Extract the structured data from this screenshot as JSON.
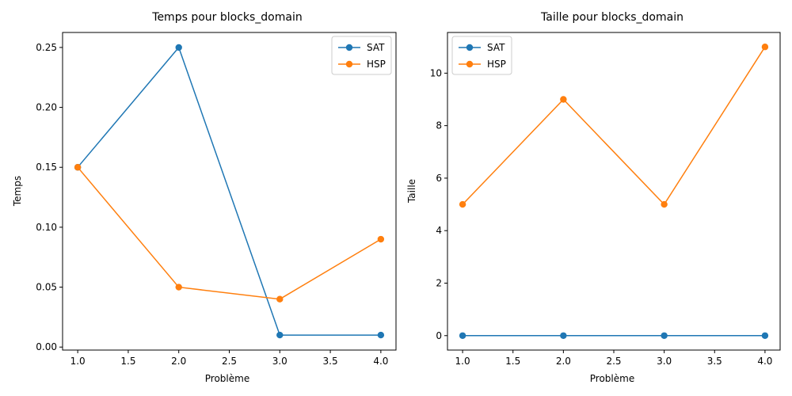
{
  "colors": {
    "SAT": "#1f77b4",
    "HSP": "#ff7f0e"
  },
  "chart_data": [
    {
      "type": "line",
      "title": "Temps pour blocks_domain",
      "xlabel": "Problème",
      "ylabel": "Temps",
      "x": [
        1.0,
        2.0,
        3.0,
        4.0
      ],
      "xlim": [
        0.85,
        4.15
      ],
      "ylim": [
        -0.0025,
        0.2625
      ],
      "xticks": [
        1.0,
        1.5,
        2.0,
        2.5,
        3.0,
        3.5,
        4.0
      ],
      "xtick_labels": [
        "1.0",
        "1.5",
        "2.0",
        "2.5",
        "3.0",
        "3.5",
        "4.0"
      ],
      "yticks": [
        0.0,
        0.05,
        0.1,
        0.15,
        0.2,
        0.25
      ],
      "ytick_labels": [
        "0.00",
        "0.05",
        "0.10",
        "0.15",
        "0.20",
        "0.25"
      ],
      "grid": false,
      "legend": "top-right",
      "series": [
        {
          "name": "SAT",
          "values": [
            0.15,
            0.25,
            0.01,
            0.01
          ]
        },
        {
          "name": "HSP",
          "values": [
            0.15,
            0.05,
            0.04,
            0.09
          ]
        }
      ]
    },
    {
      "type": "line",
      "title": "Taille pour blocks_domain",
      "xlabel": "Problème",
      "ylabel": "Taille",
      "x": [
        1.0,
        2.0,
        3.0,
        4.0
      ],
      "xlim": [
        0.85,
        4.15
      ],
      "ylim": [
        -0.55,
        11.55
      ],
      "xticks": [
        1.0,
        1.5,
        2.0,
        2.5,
        3.0,
        3.5,
        4.0
      ],
      "xtick_labels": [
        "1.0",
        "1.5",
        "2.0",
        "2.5",
        "3.0",
        "3.5",
        "4.0"
      ],
      "yticks": [
        0,
        2,
        4,
        6,
        8,
        10
      ],
      "ytick_labels": [
        "0",
        "2",
        "4",
        "6",
        "8",
        "10"
      ],
      "grid": false,
      "legend": "top-left",
      "series": [
        {
          "name": "SAT",
          "values": [
            0,
            0,
            0,
            0
          ]
        },
        {
          "name": "HSP",
          "values": [
            5,
            9,
            5,
            11
          ]
        }
      ]
    }
  ]
}
